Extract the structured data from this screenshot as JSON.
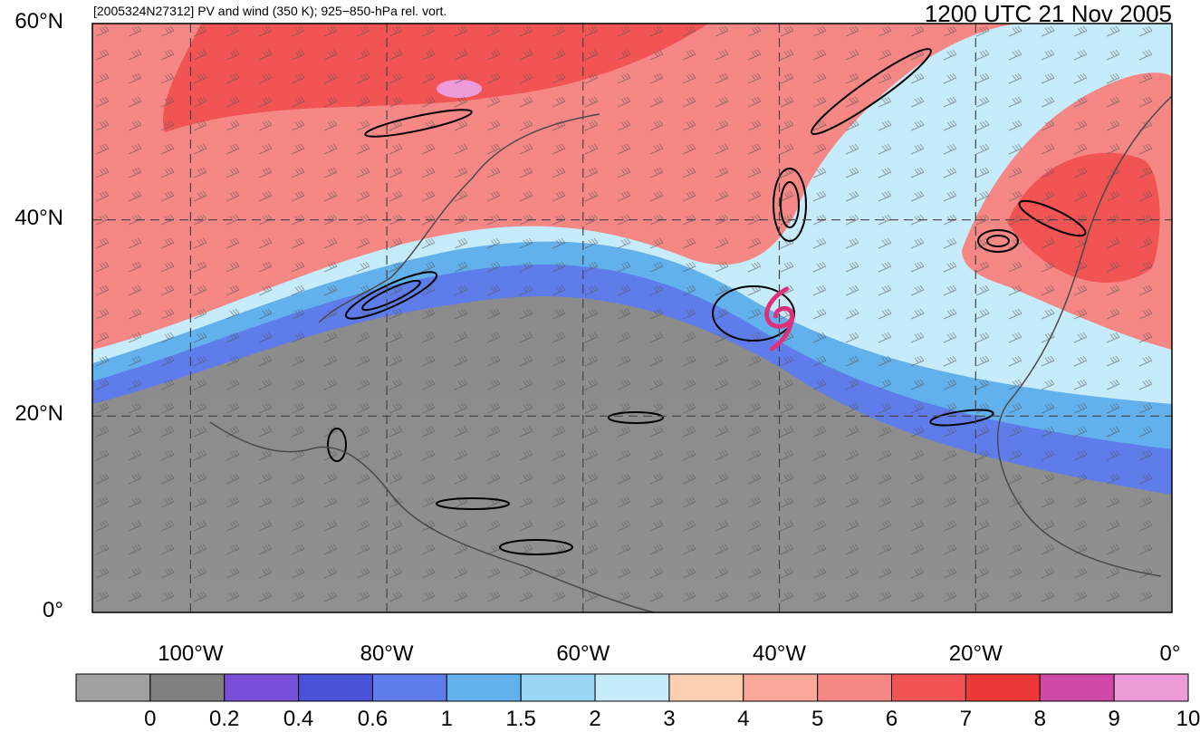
{
  "header": {
    "left_title": "[2005324N27312] PV and wind (350 K); 925−850-hPa rel. vort.",
    "right_title": "1200 UTC 21 Nov 2005"
  },
  "axes": {
    "lat_labels": [
      {
        "value": 60,
        "text": "60°N"
      },
      {
        "value": 40,
        "text": "40°N"
      },
      {
        "value": 20,
        "text": "20°N"
      },
      {
        "value": 0,
        "text": "0°"
      }
    ],
    "lon_labels": [
      {
        "value": -100,
        "text": "100°W"
      },
      {
        "value": -80,
        "text": "80°W"
      },
      {
        "value": -60,
        "text": "60°W"
      },
      {
        "value": -40,
        "text": "40°W"
      },
      {
        "value": -20,
        "text": "20°W"
      },
      {
        "value": 0,
        "text": "0°"
      }
    ],
    "lat_range": [
      0,
      60
    ],
    "lon_range": [
      -110,
      0
    ]
  },
  "colorbar": {
    "colors": [
      "#a0a0a0",
      "#808080",
      "#7a4fd8",
      "#4a52d8",
      "#5e7cea",
      "#62b0ec",
      "#9ad6f6",
      "#c6ebfa",
      "#fbcfb0",
      "#f9a899",
      "#f58785",
      "#f25454",
      "#ee3838",
      "#cf4aa6",
      "#ee9bd9"
    ],
    "labels": [
      "0",
      "0.2",
      "0.4",
      "0.6",
      "1",
      "1.5",
      "2",
      "3",
      "4",
      "5",
      "6",
      "7",
      "8",
      "9",
      "10"
    ]
  },
  "storm_marker": {
    "symbol": "tropical-storm",
    "lat": 30,
    "lon": -40,
    "color": "#e0307a"
  }
}
